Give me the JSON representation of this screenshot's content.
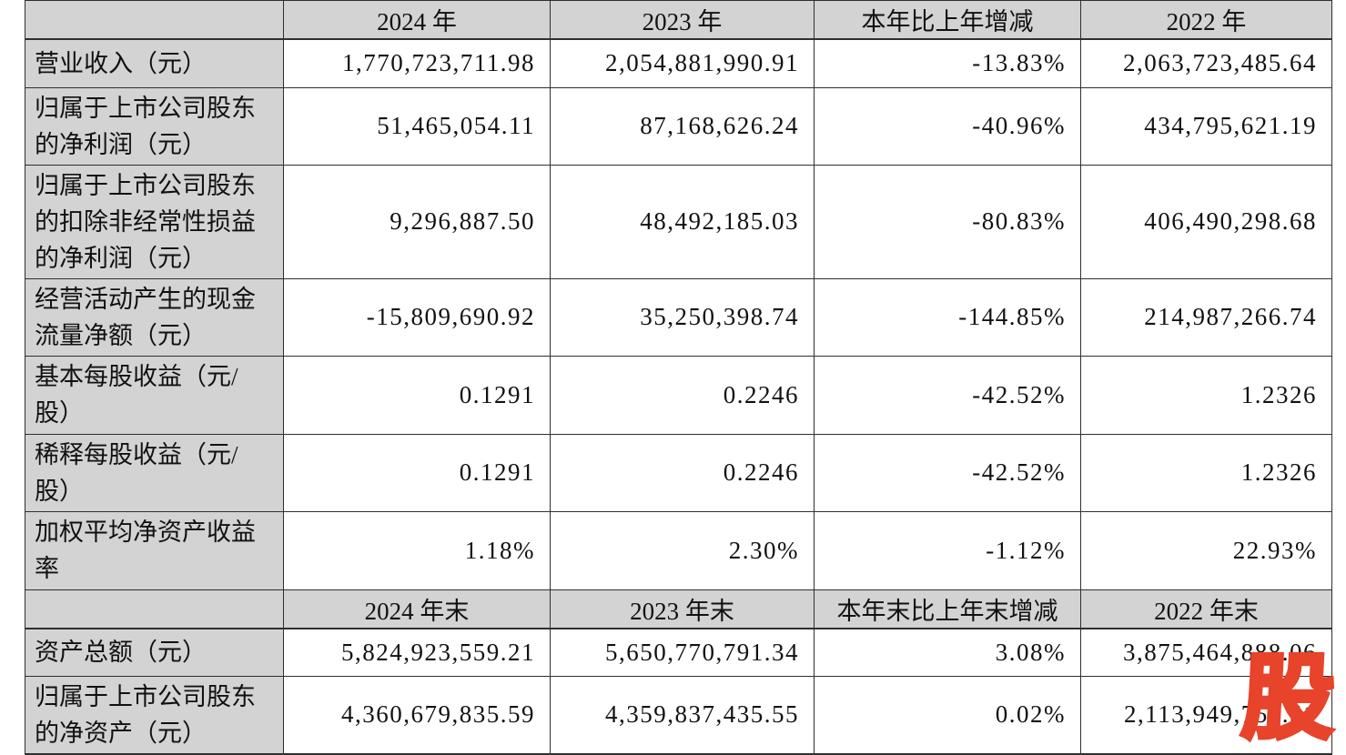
{
  "table": {
    "sections": [
      {
        "header": {
          "cells": [
            "",
            "2024 年",
            "2023 年",
            "本年比上年增减",
            "2022 年"
          ]
        },
        "rows": [
          {
            "label": "营业收入（元）",
            "values": [
              "1,770,723,711.98",
              "2,054,881,990.91",
              "-13.83%",
              "2,063,723,485.64"
            ]
          },
          {
            "label": "归属于上市公司股东的净利润（元）",
            "values": [
              "51,465,054.11",
              "87,168,626.24",
              "-40.96%",
              "434,795,621.19"
            ]
          },
          {
            "label": "归属于上市公司股东的扣除非经常性损益的净利润（元）",
            "values": [
              "9,296,887.50",
              "48,492,185.03",
              "-80.83%",
              "406,490,298.68"
            ]
          },
          {
            "label": "经营活动产生的现金流量净额（元）",
            "values": [
              "-15,809,690.92",
              "35,250,398.74",
              "-144.85%",
              "214,987,266.74"
            ]
          },
          {
            "label": "基本每股收益（元/股）",
            "values": [
              "0.1291",
              "0.2246",
              "-42.52%",
              "1.2326"
            ]
          },
          {
            "label": "稀释每股收益（元/股）",
            "values": [
              "0.1291",
              "0.2246",
              "-42.52%",
              "1.2326"
            ]
          },
          {
            "label": "加权平均净资产收益率",
            "values": [
              "1.18%",
              "2.30%",
              "-1.12%",
              "22.93%"
            ]
          }
        ]
      },
      {
        "header": {
          "cells": [
            "",
            "2024 年末",
            "2023 年末",
            "本年末比上年末增减",
            "2022 年末"
          ]
        },
        "rows": [
          {
            "label": "资产总额（元）",
            "values": [
              "5,824,923,559.21",
              "5,650,770,791.34",
              "3.08%",
              "3,875,464,888.06"
            ]
          },
          {
            "label": "归属于上市公司股东的净资产（元）",
            "values": [
              "4,360,679,835.59",
              "4,359,837,435.55",
              "0.02%",
              "2,113,949,757.51"
            ]
          }
        ]
      }
    ]
  },
  "watermark": {
    "char": "股"
  },
  "colors": {
    "header_bg": "#d3d3d3",
    "label_bg": "#d3d3d3",
    "border": "#2f2f2f",
    "text": "#111111",
    "watermark_red": "#e8432b"
  }
}
